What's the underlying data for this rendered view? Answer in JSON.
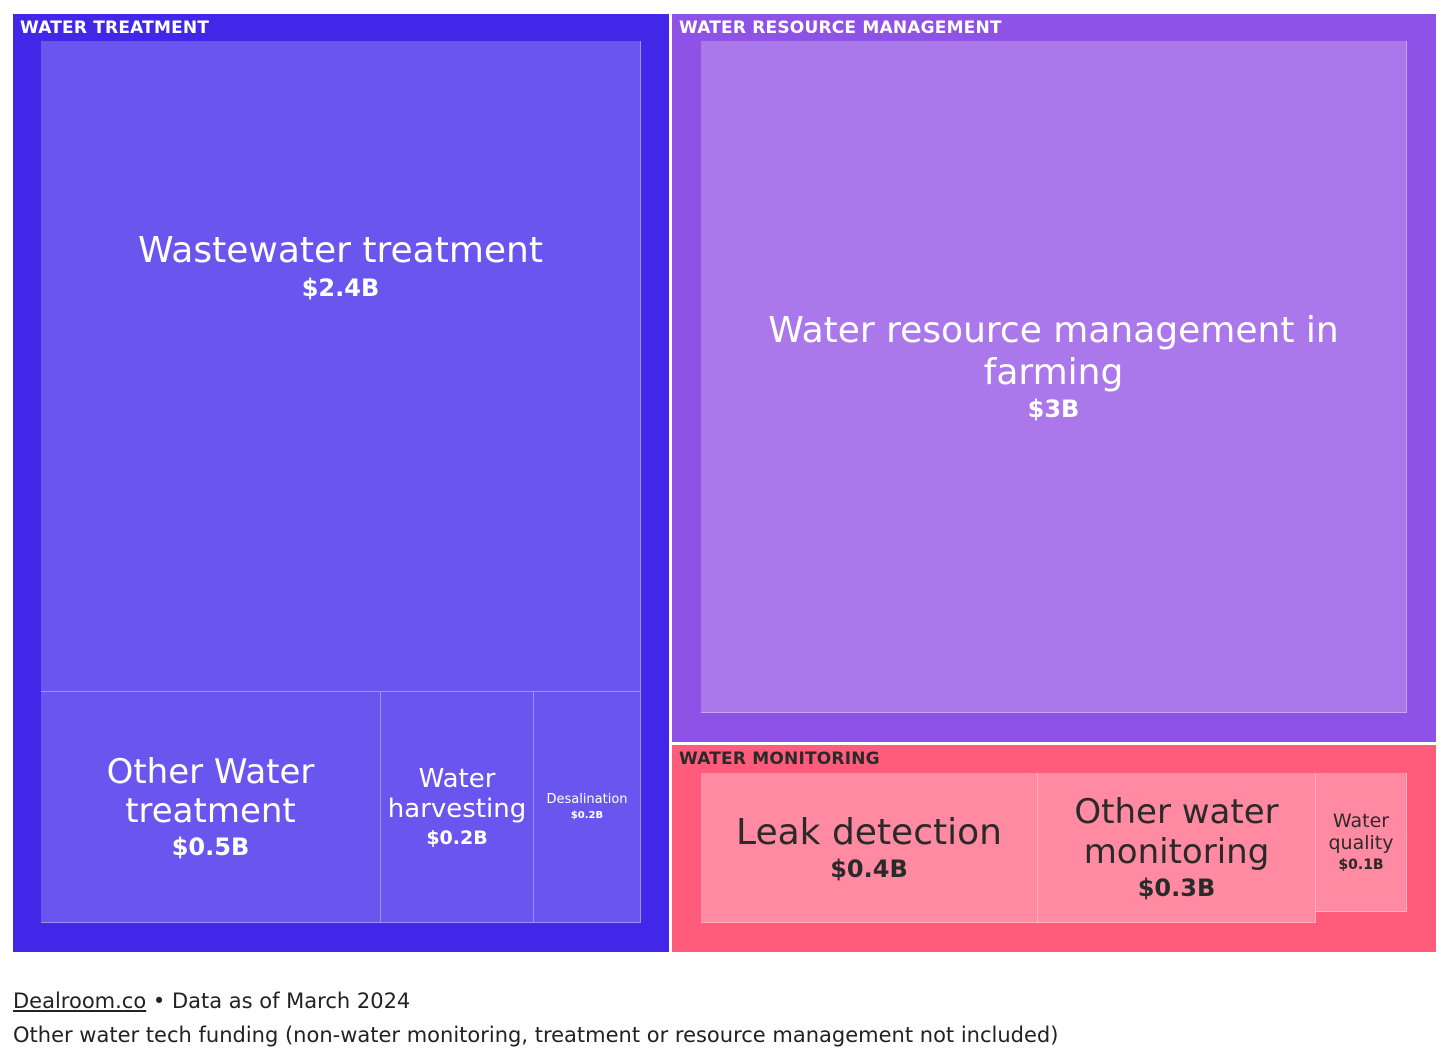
{
  "chart_data": {
    "type": "treemap",
    "groups": [
      {
        "name": "WATER TREATMENT",
        "color": "#4327E8",
        "items": [
          {
            "name": "Wastewater treatment",
            "label": "$2.4B",
            "value": 2.4
          },
          {
            "name": "Other Water treatment",
            "label": "$0.5B",
            "value": 0.5
          },
          {
            "name": "Water harvesting",
            "label": "$0.2B",
            "value": 0.2
          },
          {
            "name": "Desalination",
            "label": "$0.2B",
            "value": 0.2
          }
        ]
      },
      {
        "name": "WATER RESOURCE MANAGEMENT",
        "color": "#8F52E6",
        "items": [
          {
            "name": "Water resource management in farming",
            "label": "$3B",
            "value": 3.0
          }
        ]
      },
      {
        "name": "WATER MONITORING",
        "color": "#FF5C7C",
        "items": [
          {
            "name": "Leak detection",
            "label": "$0.4B",
            "value": 0.4
          },
          {
            "name": "Other water monitoring",
            "label": "$0.3B",
            "value": 0.3
          },
          {
            "name": "Water quality",
            "label": "$0.1B",
            "value": 0.1
          }
        ]
      }
    ]
  },
  "footer": {
    "source": "Dealroom.co",
    "date_note": " • Data as of March 2024",
    "note": "Other water tech funding (non-water monitoring, treatment or resource management not included)"
  }
}
